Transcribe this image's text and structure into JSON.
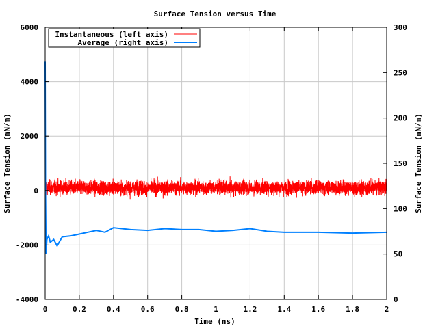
{
  "chart_data": {
    "type": "line",
    "title": "Surface Tension versus Time",
    "xlabel": "Time (ns)",
    "ylabel": "Surface Tension (mN/m)",
    "y2label": "Surface Tension (mN/m)",
    "xlim": [
      0,
      2
    ],
    "ylim": [
      -4000,
      6000
    ],
    "y2lim": [
      0,
      300
    ],
    "xticks": [
      "0",
      "0.2",
      "0.4",
      "0.6",
      "0.8",
      "1",
      "1.2",
      "1.4",
      "1.6",
      "1.8",
      "2"
    ],
    "yticks": [
      "-4000",
      "-2000",
      "0",
      "2000",
      "4000",
      "6000"
    ],
    "y2ticks": [
      "0",
      "50",
      "100",
      "150",
      "200",
      "250",
      "300"
    ],
    "grid": true,
    "legend_position": "top-left",
    "series": [
      {
        "name": "Instantaneous (left axis)",
        "axis": "left",
        "color": "#ff0000",
        "mean": 100,
        "std": 130,
        "samples": 4000,
        "initial_spike": 450
      },
      {
        "name": "Average (right axis)",
        "axis": "right",
        "color": "#0080ff",
        "x": [
          0,
          0.002,
          0.005,
          0.01,
          0.02,
          0.03,
          0.05,
          0.07,
          0.1,
          0.15,
          0.2,
          0.25,
          0.3,
          0.35,
          0.4,
          0.5,
          0.6,
          0.7,
          0.8,
          0.9,
          1.0,
          1.1,
          1.2,
          1.3,
          1.4,
          1.6,
          1.8,
          2.0
        ],
        "y": [
          262,
          120,
          50,
          66,
          70,
          63,
          66,
          59,
          69,
          70,
          72,
          74,
          76,
          74,
          79,
          77,
          76,
          78,
          77,
          77,
          75,
          76,
          78,
          75,
          74,
          74,
          73,
          74
        ]
      }
    ]
  }
}
